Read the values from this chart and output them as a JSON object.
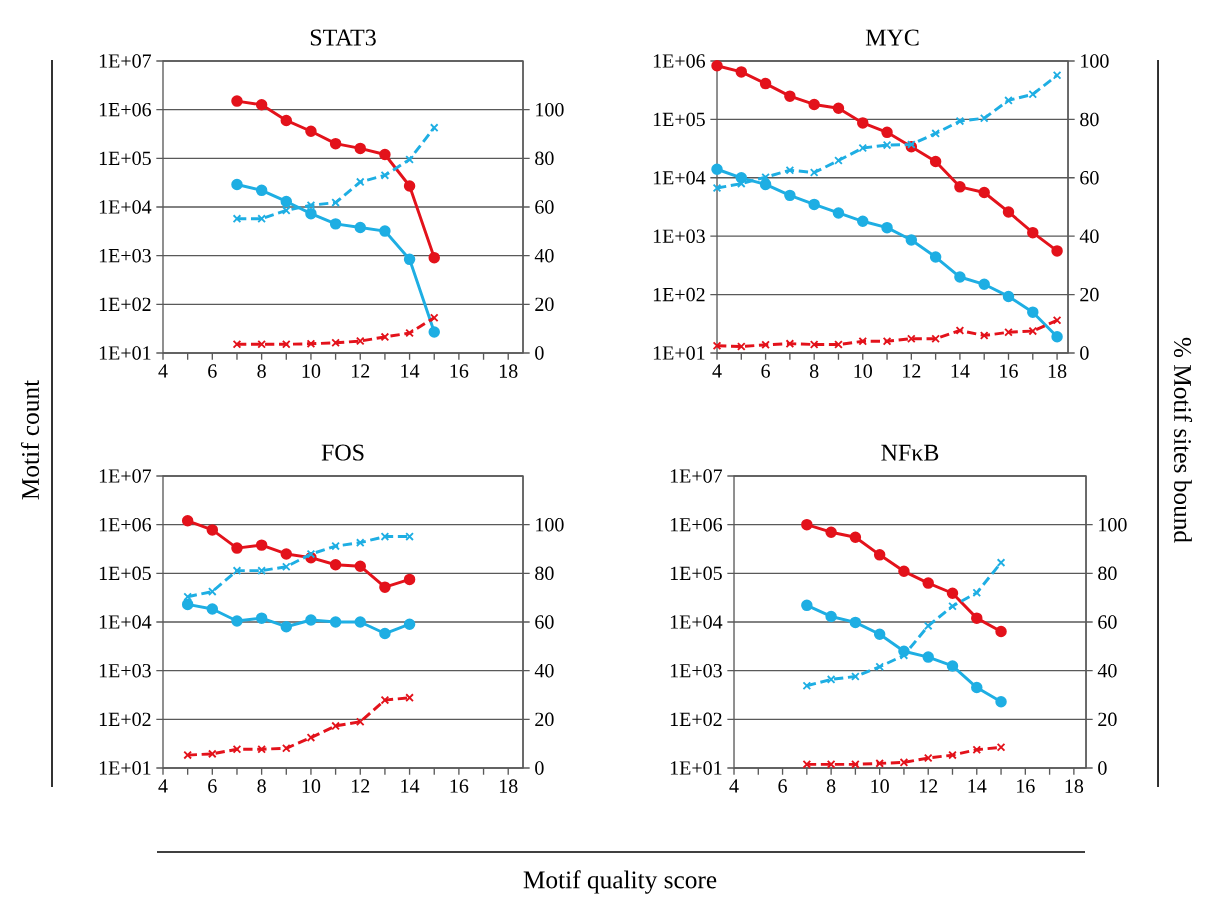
{
  "chart_data": [
    {
      "type": "line",
      "title": "STAT3",
      "ylabel": "Motif count",
      "x": [
        7,
        8,
        9,
        10,
        11,
        12,
        13,
        14,
        15
      ],
      "xlim": [
        4,
        18.6
      ],
      "xticks": [
        4,
        6,
        8,
        10,
        12,
        14,
        16,
        18
      ],
      "log": "y",
      "ylim": [
        10,
        10000000
      ],
      "yticks": [
        {
          "value": 10,
          "label": "1E+01"
        },
        {
          "value": 100,
          "label": "1E+02"
        },
        {
          "value": 1000,
          "label": "1E+03"
        },
        {
          "value": 10000,
          "label": "1E+04"
        },
        {
          "value": 100000,
          "label": "1E+05"
        },
        {
          "value": 1000000,
          "label": "1E+06"
        },
        {
          "value": 10000000,
          "label": "1E+07"
        }
      ],
      "y2lim": [
        0,
        120
      ],
      "y2ticks": [
        0,
        20,
        40,
        60,
        80,
        100
      ],
      "grid": "y",
      "series": [
        {
          "color": "#e3121b",
          "marker": "circle",
          "line_style": "solid",
          "values": [
            1500000,
            1260000,
            600000,
            360000,
            200000,
            160000,
            120000,
            27000,
            910
          ]
        },
        {
          "color": "#1eaee3",
          "marker": "circle",
          "line_style": "solid",
          "values": [
            29000,
            22000,
            13000,
            7300,
            4500,
            3800,
            3200,
            840,
            27
          ]
        },
        {
          "color": "#1eaee3",
          "marker": "cross",
          "line_style": "dashed",
          "axis": "y2",
          "values": [
            55.2,
            55.2,
            58.6,
            60.7,
            61.8,
            70.3,
            73.0,
            79.5,
            92.6
          ]
        },
        {
          "color": "#e3121b",
          "marker": "cross",
          "line_style": "dashed",
          "axis": "y2",
          "values": [
            3.6,
            3.6,
            3.6,
            3.8,
            4.2,
            4.9,
            6.6,
            8.2,
            14.5
          ]
        }
      ]
    },
    {
      "type": "line",
      "title": "MYC",
      "y2label": "% Motif sites bound",
      "x": [
        4,
        5,
        6,
        7,
        8,
        9,
        10,
        11,
        12,
        13,
        14,
        15,
        16,
        17,
        18
      ],
      "xlim": [
        4,
        18.45
      ],
      "xticks": [
        4,
        6,
        8,
        10,
        12,
        14,
        16,
        18
      ],
      "log": "y",
      "ylim": [
        10,
        1000000
      ],
      "yticks": [
        {
          "value": 10,
          "label": "1E+01"
        },
        {
          "value": 100,
          "label": "1E+02"
        },
        {
          "value": 1000,
          "label": "1E+03"
        },
        {
          "value": 10000,
          "label": "1E+04"
        },
        {
          "value": 100000,
          "label": "1E+05"
        },
        {
          "value": 1000000,
          "label": "1E+06"
        }
      ],
      "y2lim": [
        0,
        100
      ],
      "y2ticks": [
        0,
        20,
        40,
        60,
        80,
        100
      ],
      "grid": "y",
      "series": [
        {
          "color": "#e3121b",
          "marker": "circle",
          "line_style": "solid",
          "values": [
            830000,
            650000,
            410000,
            250000,
            180000,
            155000,
            87000,
            60000,
            34000,
            19000,
            7000,
            5600,
            2600,
            1150,
            560
          ]
        },
        {
          "color": "#1eaee3",
          "marker": "circle",
          "line_style": "solid",
          "values": [
            14000,
            10000,
            7700,
            5000,
            3500,
            2500,
            1800,
            1400,
            860,
            440,
            200,
            150,
            93,
            50,
            19
          ]
        },
        {
          "color": "#1eaee3",
          "marker": "cross",
          "line_style": "dashed",
          "axis": "y2",
          "values": [
            56.5,
            58.0,
            60.2,
            62.6,
            61.8,
            65.9,
            70.2,
            71.2,
            71.4,
            75.2,
            79.4,
            80.4,
            86.5,
            88.6,
            95.1
          ]
        },
        {
          "color": "#e3121b",
          "marker": "cross",
          "line_style": "dashed",
          "axis": "y2",
          "values": [
            2.5,
            2.2,
            2.8,
            3.2,
            2.9,
            2.9,
            4.0,
            4.0,
            4.9,
            4.9,
            7.7,
            6.0,
            7.1,
            7.5,
            11.2
          ]
        }
      ]
    },
    {
      "type": "line",
      "title": "FOS",
      "xlabel": "Motif quality score",
      "x": [
        5,
        6,
        7,
        8,
        9,
        10,
        11,
        12,
        13,
        14
      ],
      "xlim": [
        4,
        18.6
      ],
      "xticks": [
        4,
        6,
        8,
        10,
        12,
        14,
        16,
        18
      ],
      "log": "y",
      "ylim": [
        10,
        10000000
      ],
      "yticks": [
        {
          "value": 10,
          "label": "1E+01"
        },
        {
          "value": 100,
          "label": "1E+02"
        },
        {
          "value": 1000,
          "label": "1E+03"
        },
        {
          "value": 10000,
          "label": "1E+04"
        },
        {
          "value": 100000,
          "label": "1E+05"
        },
        {
          "value": 1000000,
          "label": "1E+06"
        },
        {
          "value": 10000000,
          "label": "1E+07"
        }
      ],
      "y2lim": [
        0,
        120
      ],
      "y2ticks": [
        0,
        20,
        40,
        60,
        80,
        100
      ],
      "grid": "y",
      "series": [
        {
          "color": "#e3121b",
          "marker": "circle",
          "line_style": "solid",
          "values": [
            1200000,
            780000,
            330000,
            380000,
            250000,
            210000,
            150000,
            140000,
            52000,
            75000
          ]
        },
        {
          "color": "#1eaee3",
          "marker": "circle",
          "line_style": "solid",
          "values": [
            23000,
            18500,
            10500,
            12000,
            8000,
            11000,
            10000,
            10000,
            5800,
            9000
          ]
        },
        {
          "color": "#1eaee3",
          "marker": "cross",
          "line_style": "dashed",
          "axis": "y2",
          "values": [
            70.4,
            72.5,
            81.1,
            81.1,
            82.7,
            87.9,
            91.2,
            92.6,
            95.1,
            95.1
          ]
        },
        {
          "color": "#e3121b",
          "marker": "cross",
          "line_style": "dashed",
          "axis": "y2",
          "values": [
            5.3,
            5.8,
            7.7,
            7.7,
            8.1,
            12.5,
            17.3,
            19.0,
            27.9,
            28.9
          ]
        }
      ]
    },
    {
      "type": "line",
      "title": "NFκB",
      "x": [
        7,
        8,
        9,
        10,
        11,
        12,
        13,
        14,
        15
      ],
      "xlim": [
        4,
        18.5
      ],
      "xticks": [
        4,
        6,
        8,
        10,
        12,
        14,
        16,
        18
      ],
      "log": "y",
      "ylim": [
        10,
        10000000
      ],
      "yticks": [
        {
          "value": 10,
          "label": "1E+01"
        },
        {
          "value": 100,
          "label": "1E+02"
        },
        {
          "value": 1000,
          "label": "1E+03"
        },
        {
          "value": 10000,
          "label": "1E+04"
        },
        {
          "value": 100000,
          "label": "1E+05"
        },
        {
          "value": 1000000,
          "label": "1E+06"
        },
        {
          "value": 10000000,
          "label": "1E+07"
        }
      ],
      "y2lim": [
        0,
        120
      ],
      "y2ticks": [
        0,
        20,
        40,
        60,
        80,
        100
      ],
      "grid": "y",
      "series": [
        {
          "color": "#e3121b",
          "marker": "circle",
          "line_style": "solid",
          "values": [
            1000000,
            700000,
            550000,
            240000,
            110000,
            63000,
            39000,
            12000,
            6400
          ]
        },
        {
          "color": "#1eaee3",
          "marker": "circle",
          "line_style": "solid",
          "values": [
            22000,
            13000,
            9800,
            5600,
            2500,
            1900,
            1250,
            450,
            230
          ]
        },
        {
          "color": "#1eaee3",
          "marker": "cross",
          "line_style": "dashed",
          "axis": "y2",
          "values": [
            33.8,
            36.4,
            37.6,
            41.6,
            46.3,
            58.4,
            66.5,
            72.0,
            84.4
          ]
        },
        {
          "color": "#e3121b",
          "marker": "cross",
          "line_style": "dashed",
          "axis": "y2",
          "values": [
            1.5,
            1.5,
            1.5,
            1.9,
            2.3,
            4.1,
            5.3,
            7.5,
            8.5
          ]
        }
      ]
    }
  ]
}
